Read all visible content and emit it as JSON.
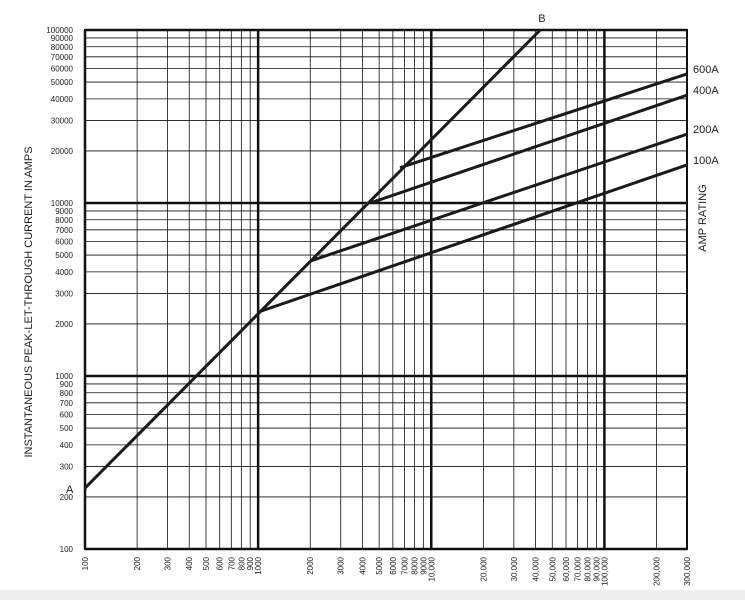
{
  "chart_data": {
    "type": "line",
    "y_label": "INSTANTANEOUS PEAK-LET-THROUGH CURRENT IN AMPS",
    "y2_label": "AMP RATING",
    "log_x": true,
    "log_y": true,
    "grid": true,
    "xlim": [
      100,
      300000
    ],
    "ylim": [
      100,
      100000
    ],
    "xticks": [
      100,
      200,
      300,
      400,
      500,
      600,
      700,
      800,
      900,
      1000,
      2000,
      3000,
      4000,
      5000,
      6000,
      7000,
      8000,
      9000,
      {
        "value": 10000,
        "label": "10,000"
      },
      {
        "value": 20000,
        "label": "20,000"
      },
      {
        "value": 30000,
        "label": "30,000"
      },
      {
        "value": 40000,
        "label": "40,000"
      },
      {
        "value": 50000,
        "label": "50,000"
      },
      {
        "value": 60000,
        "label": "60,000"
      },
      {
        "value": 70000,
        "label": "70,000"
      },
      {
        "value": 80000,
        "label": "80,000"
      },
      {
        "value": 90000,
        "label": "90,000"
      },
      {
        "value": 100000,
        "label": "100,000"
      },
      {
        "value": 200000,
        "label": "200,000"
      },
      {
        "value": 300000,
        "label": "300,000"
      }
    ],
    "yticks": [
      100,
      200,
      300,
      400,
      500,
      600,
      700,
      800,
      900,
      1000,
      2000,
      3000,
      4000,
      5000,
      6000,
      7000,
      8000,
      9000,
      10000,
      20000,
      30000,
      40000,
      50000,
      60000,
      70000,
      80000,
      90000,
      100000
    ],
    "color": "#1a1a1a",
    "threshold_line": {
      "start_label": "A",
      "end_label": "B",
      "x": [
        100,
        42600
      ],
      "values": [
        225,
        100000
      ]
    },
    "series": [
      {
        "name": "600A",
        "x": [
          6600,
          300000
        ],
        "values": [
          16000,
          55700
        ]
      },
      {
        "name": "400A",
        "x": [
          4440,
          300000
        ],
        "values": [
          10000,
          42000
        ]
      },
      {
        "name": "200A",
        "x": [
          2000,
          300000
        ],
        "values": [
          4620,
          25000
        ]
      },
      {
        "name": "100A",
        "x": [
          1000,
          300000
        ],
        "values": [
          2340,
          16600
        ]
      }
    ]
  }
}
